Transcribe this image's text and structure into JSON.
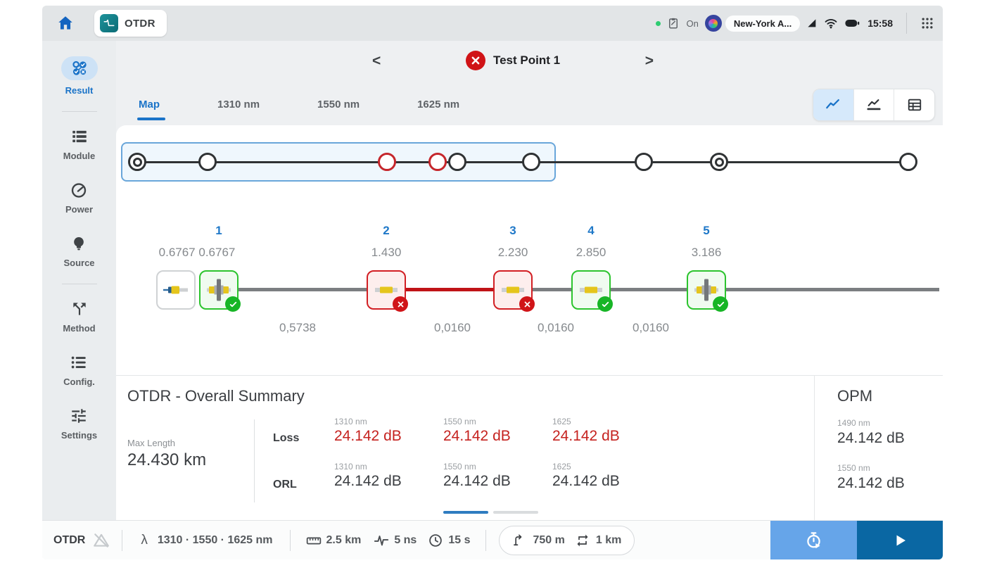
{
  "topbar": {
    "app_label": "OTDR",
    "status_on": "On",
    "device_name": "New-York A...",
    "time": "15:58"
  },
  "sidebar": {
    "items": [
      {
        "label": "Result",
        "icon": "result-icon",
        "active": true
      },
      {
        "label": "Module",
        "icon": "module-icon",
        "active": false
      },
      {
        "label": "Power",
        "icon": "power-meter-icon",
        "active": false
      },
      {
        "label": "Source",
        "icon": "light-source-icon",
        "active": false
      },
      {
        "label": "Method",
        "icon": "method-icon",
        "active": false
      },
      {
        "label": "Config.",
        "icon": "config-icon",
        "active": false
      },
      {
        "label": "Settings",
        "icon": "settings-icon",
        "active": false
      }
    ]
  },
  "header": {
    "prev": "<",
    "title": "Test Point 1",
    "next": ">",
    "status": "fail"
  },
  "tabs": [
    {
      "label": "Map",
      "active": true
    },
    {
      "label": "1310 nm",
      "active": false
    },
    {
      "label": "1550 nm",
      "active": false
    },
    {
      "label": "1625 nm",
      "active": false
    }
  ],
  "link_map": {
    "nodes": [
      "double",
      "single",
      "red",
      "red",
      "single",
      "single",
      "single",
      "double",
      "single"
    ]
  },
  "events": {
    "items": [
      {
        "num": "1",
        "value": "0.6767 0.6767",
        "type": "connector",
        "status": "pass"
      },
      {
        "num": "2",
        "value": "1.430",
        "type": "fiber-section",
        "status": "fail"
      },
      {
        "num": "3",
        "value": "2.230",
        "type": "fiber-section",
        "status": "fail"
      },
      {
        "num": "4",
        "value": "2.850",
        "type": "fiber-section",
        "status": "pass"
      },
      {
        "num": "5",
        "value": "3.186",
        "type": "connector",
        "status": "pass"
      }
    ],
    "segments": [
      {
        "label": "0,5738",
        "status": "ok"
      },
      {
        "label": "0,0160",
        "status": "fail"
      },
      {
        "label": "0,0160",
        "status": "ok"
      },
      {
        "label": "0,0160",
        "status": "ok"
      }
    ]
  },
  "summary": {
    "title": "OTDR - Overall Summary",
    "max_length": {
      "label": "Max Length",
      "value": "24.430 km"
    },
    "rows": [
      {
        "label": "Loss",
        "cols": [
          {
            "wl": "1310 nm",
            "value": "24.142 dB"
          },
          {
            "wl": "1550 nm",
            "value": "24.142 dB"
          },
          {
            "wl": "1625",
            "value": "24.142 dB"
          }
        ]
      },
      {
        "label": "ORL",
        "cols": [
          {
            "wl": "1310 nm",
            "value": "24.142 dB"
          },
          {
            "wl": "1550 nm",
            "value": "24.142 dB"
          },
          {
            "wl": "1625",
            "value": "24.142 dB"
          }
        ]
      }
    ]
  },
  "opm": {
    "title": "OPM",
    "readings": [
      {
        "wl": "1490 nm",
        "value": "24.142 dB"
      },
      {
        "wl": "1550 nm",
        "value": "24.142 dB"
      }
    ]
  },
  "bottombar": {
    "mode": "OTDR",
    "lambda": "λ",
    "wavelengths": "1310  ·  1550  ·  1625  nm",
    "distance": "2.5 km",
    "pulse": "5 ns",
    "duration": "15 s",
    "launch_fiber": "750 m",
    "receive_fiber": "1 km"
  },
  "colors": {
    "accent_blue": "#1a73c8",
    "alarm_red": "#c5221f",
    "pass_green": "#17b526",
    "timer_button": "#66a5e9",
    "start_button": "#0a67a3",
    "trace_teal": "#0c6b75"
  }
}
